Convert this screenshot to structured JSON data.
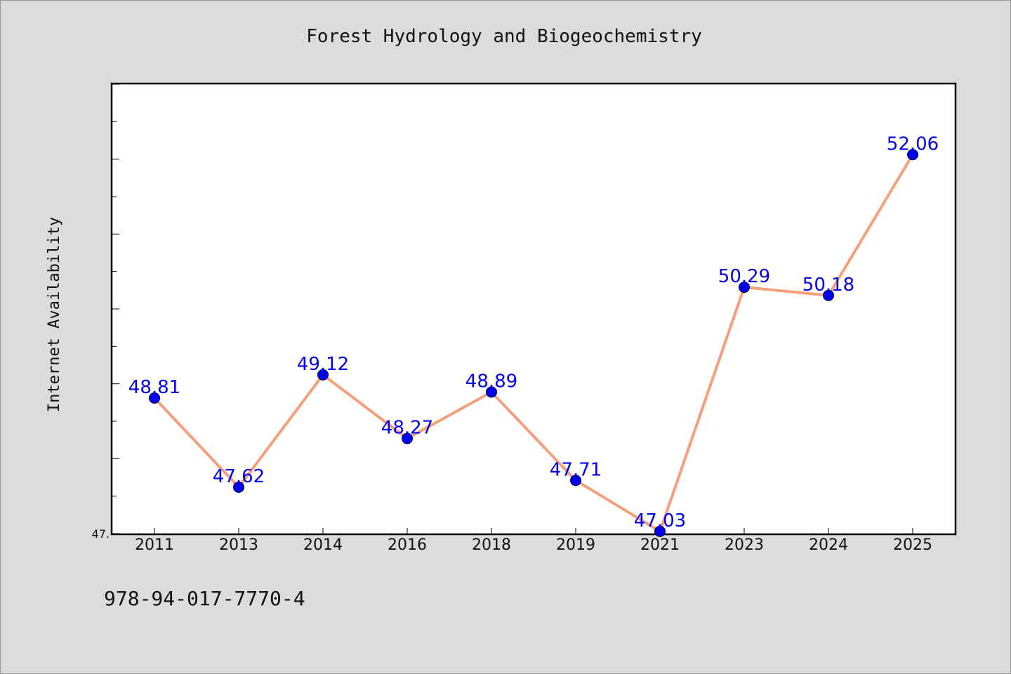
{
  "chart_data": {
    "type": "line",
    "title": "Forest Hydrology and Biogeochemistry",
    "xlabel": "",
    "ylabel": "Internet Availability",
    "categories": [
      "2011",
      "2013",
      "2014",
      "2016",
      "2018",
      "2019",
      "2021",
      "2023",
      "2024",
      "2025"
    ],
    "series": [
      {
        "values": [
          48.81,
          47.62,
          49.12,
          48.27,
          48.89,
          47.71,
          47.03,
          50.29,
          50.18,
          52.06
        ],
        "labels": [
          "48.81",
          "47.62",
          "49.12",
          "48.27",
          "48.89",
          "47.71",
          "47.03",
          "50.29",
          "50.18",
          "52.06"
        ]
      }
    ],
    "ylim": [
      47.0,
      53.0
    ],
    "y_tick_label": "47.",
    "grid": false,
    "colors": {
      "line": "#f4a07c",
      "marker": "#0000ee",
      "marker_edge": "#000033",
      "data_label": "#0000ee",
      "plot_background": "#ffffff",
      "page_background": "#dcdcdc"
    }
  },
  "footer": {
    "isbn": "978-94-017-7770-4"
  }
}
